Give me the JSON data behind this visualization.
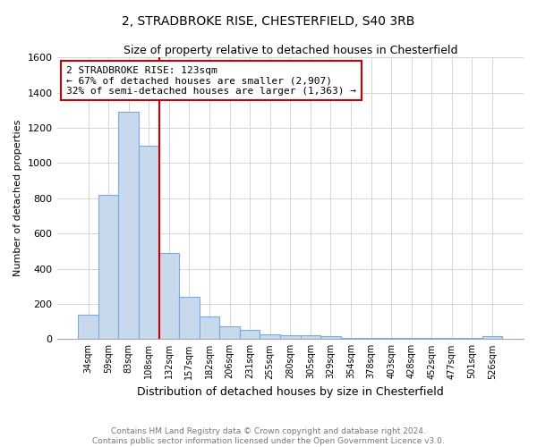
{
  "title": "2, STRADBROKE RISE, CHESTERFIELD, S40 3RB",
  "subtitle": "Size of property relative to detached houses in Chesterfield",
  "xlabel": "Distribution of detached houses by size in Chesterfield",
  "ylabel": "Number of detached properties",
  "footer_line1": "Contains HM Land Registry data © Crown copyright and database right 2024.",
  "footer_line2": "Contains public sector information licensed under the Open Government Licence v3.0.",
  "bar_labels": [
    "34sqm",
    "59sqm",
    "83sqm",
    "108sqm",
    "132sqm",
    "157sqm",
    "182sqm",
    "206sqm",
    "231sqm",
    "255sqm",
    "280sqm",
    "305sqm",
    "329sqm",
    "354sqm",
    "378sqm",
    "403sqm",
    "428sqm",
    "452sqm",
    "477sqm",
    "501sqm",
    "526sqm"
  ],
  "bar_values": [
    140,
    820,
    1290,
    1100,
    490,
    240,
    130,
    75,
    50,
    25,
    20,
    20,
    15,
    5,
    5,
    5,
    5,
    5,
    5,
    5,
    15
  ],
  "bar_color": "#c8d8ed",
  "bar_edge_color": "#7aabe0",
  "grid_color": "#d0d0d0",
  "vline_color": "#cc0000",
  "ylim": [
    0,
    1600
  ],
  "yticks": [
    0,
    200,
    400,
    600,
    800,
    1000,
    1200,
    1400,
    1600
  ],
  "vline_pos": 4.5,
  "annotation_line1": "2 STRADBROKE RISE: 123sqm",
  "annotation_line2": "← 67% of detached houses are smaller (2,907)",
  "annotation_line3": "32% of semi-detached houses are larger (1,363) →",
  "annotation_box_color": "#cc0000",
  "background_color": "#ffffff"
}
